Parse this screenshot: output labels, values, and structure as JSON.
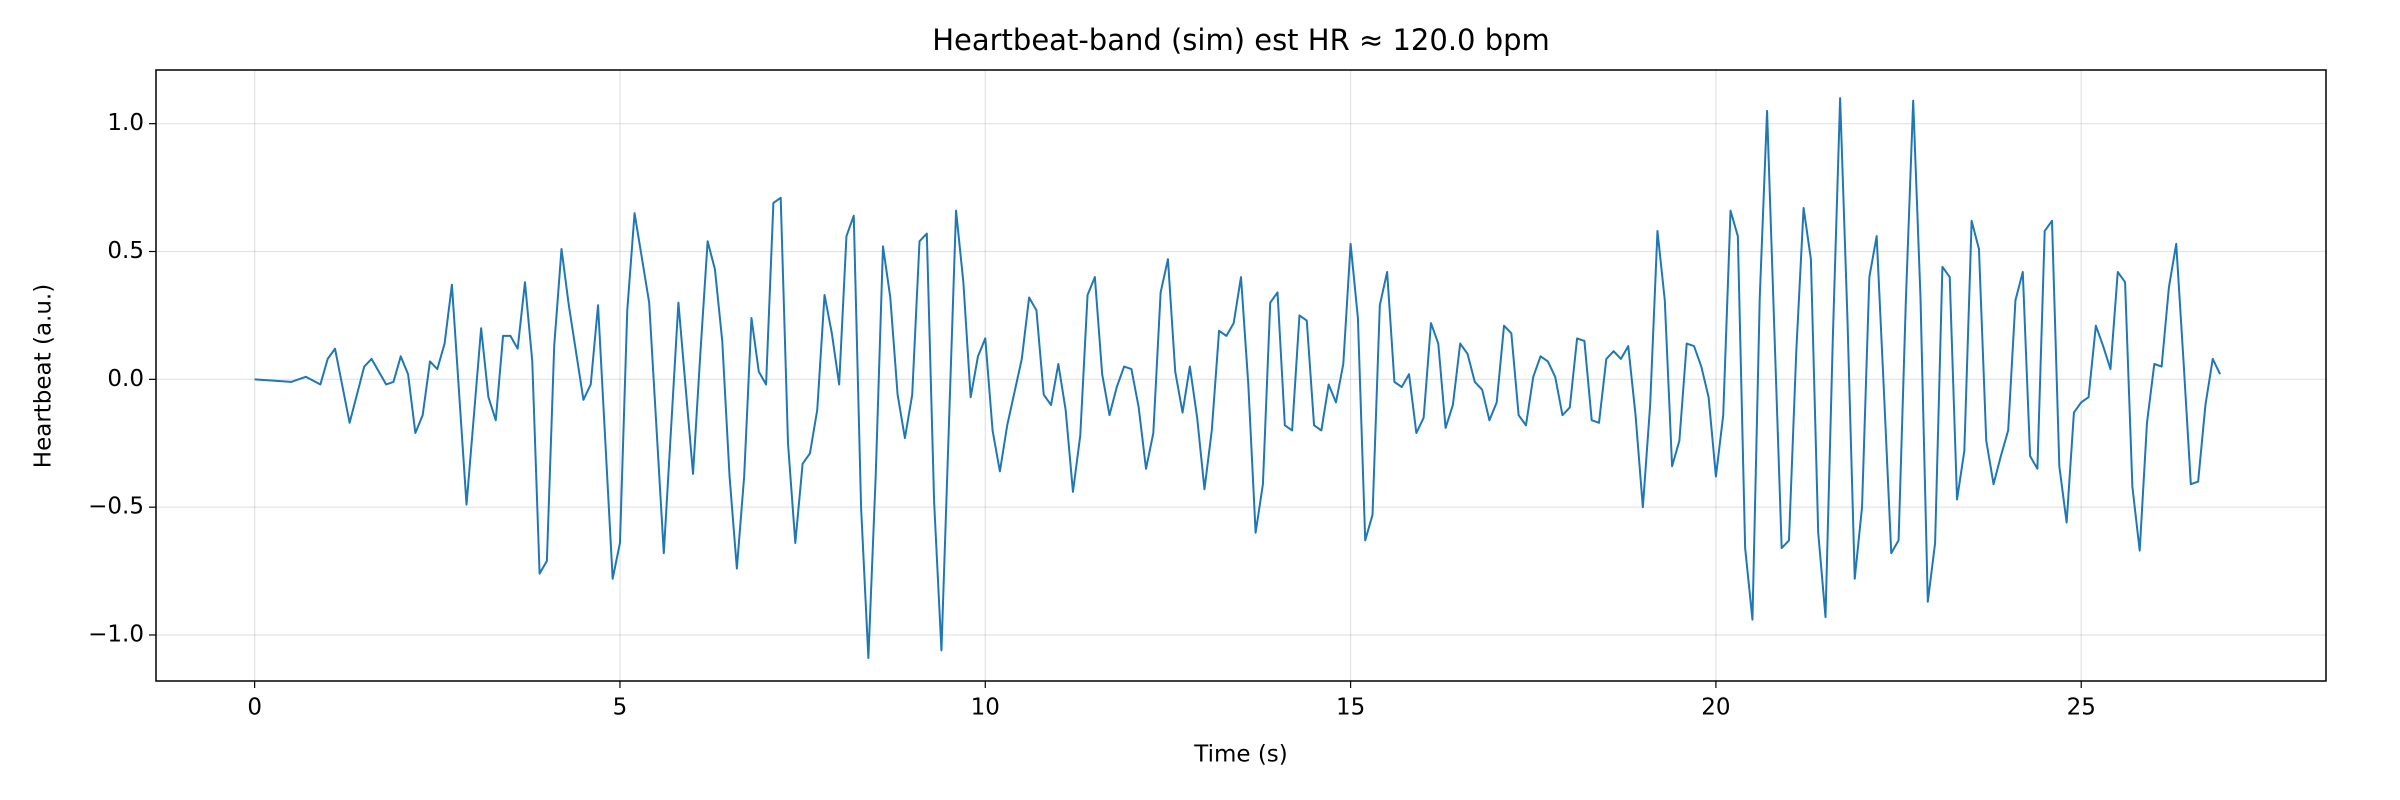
{
  "chart_data": {
    "type": "line",
    "title": "Heartbeat-band (sim)  est HR ≈ 120.0 bpm",
    "x_label": "Time (s)",
    "y_label": "Heartbeat (a.u.)",
    "xlim": [
      -1.35,
      28.35
    ],
    "ylim": [
      -1.18,
      1.21
    ],
    "xticks": [
      0,
      5,
      10,
      15,
      20,
      25
    ],
    "yticks": [
      {
        "value": -1.0,
        "label": "−1.0"
      },
      {
        "value": -0.5,
        "label": "−0.5"
      },
      {
        "value": 0.0,
        "label": "0.0"
      },
      {
        "value": 0.5,
        "label": "0.5"
      },
      {
        "value": 1.0,
        "label": "1.0"
      }
    ],
    "grid": true,
    "series": [
      {
        "color": "#1f77b4",
        "x": [
          0,
          0.5,
          0.7,
          0.9,
          1.0,
          1.1,
          1.3,
          1.5,
          1.6,
          1.8,
          1.9,
          2.0,
          2.1,
          2.2,
          2.3,
          2.4,
          2.5,
          2.6,
          2.7,
          2.9,
          3.1,
          3.2,
          3.3,
          3.4,
          3.5,
          3.6,
          3.7,
          3.8,
          3.9,
          4.0,
          4.1,
          4.2,
          4.3,
          4.5,
          4.6,
          4.7,
          4.9,
          5.0,
          5.1,
          5.2,
          5.4,
          5.6,
          5.8,
          6.0,
          6.1,
          6.2,
          6.3,
          6.4,
          6.5,
          6.6,
          6.7,
          6.8,
          6.9,
          7.0,
          7.1,
          7.2,
          7.3,
          7.4,
          7.5,
          7.6,
          7.7,
          7.8,
          7.9,
          8.0,
          8.1,
          8.2,
          8.3,
          8.4,
          8.5,
          8.6,
          8.7,
          8.8,
          8.9,
          9.0,
          9.1,
          9.2,
          9.3,
          9.4,
          9.5,
          9.6,
          9.7,
          9.8,
          9.9,
          10.0,
          10.1,
          10.2,
          10.3,
          10.5,
          10.6,
          10.7,
          10.8,
          10.9,
          11.0,
          11.1,
          11.2,
          11.3,
          11.4,
          11.5,
          11.6,
          11.7,
          11.8,
          11.9,
          12.0,
          12.1,
          12.2,
          12.3,
          12.4,
          12.5,
          12.6,
          12.7,
          12.8,
          12.9,
          13.0,
          13.1,
          13.2,
          13.3,
          13.4,
          13.5,
          13.6,
          13.7,
          13.8,
          13.9,
          14.0,
          14.1,
          14.2,
          14.3,
          14.4,
          14.5,
          14.6,
          14.7,
          14.8,
          14.9,
          15.0,
          15.1,
          15.2,
          15.3,
          15.4,
          15.5,
          15.6,
          15.7,
          15.8,
          15.9,
          16.0,
          16.1,
          16.2,
          16.3,
          16.4,
          16.5,
          16.6,
          16.7,
          16.8,
          16.9,
          17.0,
          17.1,
          17.2,
          17.3,
          17.4,
          17.5,
          17.6,
          17.7,
          17.8,
          17.9,
          18.0,
          18.1,
          18.2,
          18.3,
          18.4,
          18.5,
          18.6,
          18.7,
          18.8,
          18.9,
          19.0,
          19.1,
          19.2,
          19.3,
          19.4,
          19.5,
          19.6,
          19.7,
          19.8,
          19.9,
          20.0,
          20.1,
          20.2,
          20.3,
          20.4,
          20.5,
          20.6,
          20.7,
          20.8,
          20.9,
          21.0,
          21.1,
          21.2,
          21.3,
          21.4,
          21.5,
          21.6,
          21.7,
          21.8,
          21.9,
          22.0,
          22.1,
          22.2,
          22.3,
          22.4,
          22.5,
          22.6,
          22.7,
          22.8,
          22.9,
          23.0,
          23.1,
          23.2,
          23.3,
          23.4,
          23.5,
          23.6,
          23.7,
          23.8,
          23.9,
          24.0,
          24.1,
          24.2,
          24.3,
          24.4,
          24.5,
          24.6,
          24.7,
          24.8,
          24.9,
          25.0,
          25.1,
          25.2,
          25.3,
          25.4,
          25.5,
          25.6,
          25.7,
          25.8,
          25.9,
          26.0,
          26.1,
          26.2,
          26.3,
          26.4,
          26.5,
          26.6,
          26.7,
          26.8,
          26.9
        ],
        "values": [
          0,
          -0.01,
          0.01,
          -0.02,
          0.08,
          0.12,
          -0.17,
          0.05,
          0.08,
          -0.02,
          -0.01,
          0.09,
          0.02,
          -0.21,
          -0.14,
          0.07,
          0.04,
          0.14,
          0.37,
          -0.49,
          0.2,
          -0.07,
          -0.16,
          0.17,
          0.17,
          0.12,
          0.38,
          0.07,
          -0.76,
          -0.71,
          0.13,
          0.51,
          0.29,
          -0.08,
          -0.02,
          0.29,
          -0.78,
          -0.64,
          0.27,
          0.65,
          0.3,
          -0.68,
          0.3,
          -0.37,
          0.1,
          0.54,
          0.43,
          0.15,
          -0.38,
          -0.74,
          -0.38,
          0.24,
          0.03,
          -0.02,
          0.69,
          0.71,
          -0.25,
          -0.64,
          -0.33,
          -0.29,
          -0.12,
          0.33,
          0.18,
          -0.02,
          0.56,
          0.64,
          -0.5,
          -1.09,
          -0.38,
          0.52,
          0.32,
          -0.06,
          -0.23,
          -0.06,
          0.54,
          0.57,
          -0.48,
          -1.06,
          -0.2,
          0.66,
          0.38,
          -0.07,
          0.09,
          0.16,
          -0.2,
          -0.36,
          -0.18,
          0.08,
          0.32,
          0.27,
          -0.06,
          -0.1,
          0.06,
          -0.12,
          -0.44,
          -0.22,
          0.33,
          0.4,
          0.02,
          -0.14,
          -0.03,
          0.05,
          0.04,
          -0.11,
          -0.35,
          -0.21,
          0.34,
          0.47,
          0.03,
          -0.13,
          0.05,
          -0.15,
          -0.43,
          -0.2,
          0.19,
          0.17,
          0.22,
          0.4,
          -0.02,
          -0.6,
          -0.41,
          0.3,
          0.34,
          -0.18,
          -0.2,
          0.25,
          0.23,
          -0.18,
          -0.2,
          -0.02,
          -0.09,
          0.06,
          0.53,
          0.24,
          -0.63,
          -0.53,
          0.29,
          0.42,
          -0.01,
          -0.03,
          0.02,
          -0.21,
          -0.15,
          0.22,
          0.14,
          -0.19,
          -0.1,
          0.14,
          0.1,
          -0.01,
          -0.04,
          -0.16,
          -0.09,
          0.21,
          0.18,
          -0.14,
          -0.18,
          0.01,
          0.09,
          0.07,
          0.01,
          -0.14,
          -0.11,
          0.16,
          0.15,
          -0.16,
          -0.17,
          0.08,
          0.11,
          0.08,
          0.13,
          -0.14,
          -0.5,
          -0.1,
          0.58,
          0.31,
          -0.34,
          -0.24,
          0.14,
          0.13,
          0.05,
          -0.07,
          -0.38,
          -0.14,
          0.66,
          0.56,
          -0.66,
          -0.94,
          0.32,
          1.05,
          0.19,
          -0.66,
          -0.63,
          0.11,
          0.67,
          0.47,
          -0.6,
          -0.93,
          0.16,
          1.1,
          0.24,
          -0.78,
          -0.5,
          0.4,
          0.56,
          -0.05,
          -0.68,
          -0.63,
          0.31,
          1.09,
          0.32,
          -0.87,
          -0.64,
          0.44,
          0.4,
          -0.47,
          -0.28,
          0.62,
          0.51,
          -0.24,
          -0.41,
          -0.3,
          -0.2,
          0.31,
          0.42,
          -0.3,
          -0.35,
          0.58,
          0.62,
          -0.34,
          -0.56,
          -0.13,
          -0.09,
          -0.07,
          0.21,
          0.13,
          0.04,
          0.42,
          0.38,
          -0.42,
          -0.67,
          -0.17,
          0.06,
          0.05,
          0.36,
          0.53,
          0.07,
          -0.41,
          -0.4,
          -0.1,
          0.08,
          0.02
        ]
      }
    ]
  }
}
